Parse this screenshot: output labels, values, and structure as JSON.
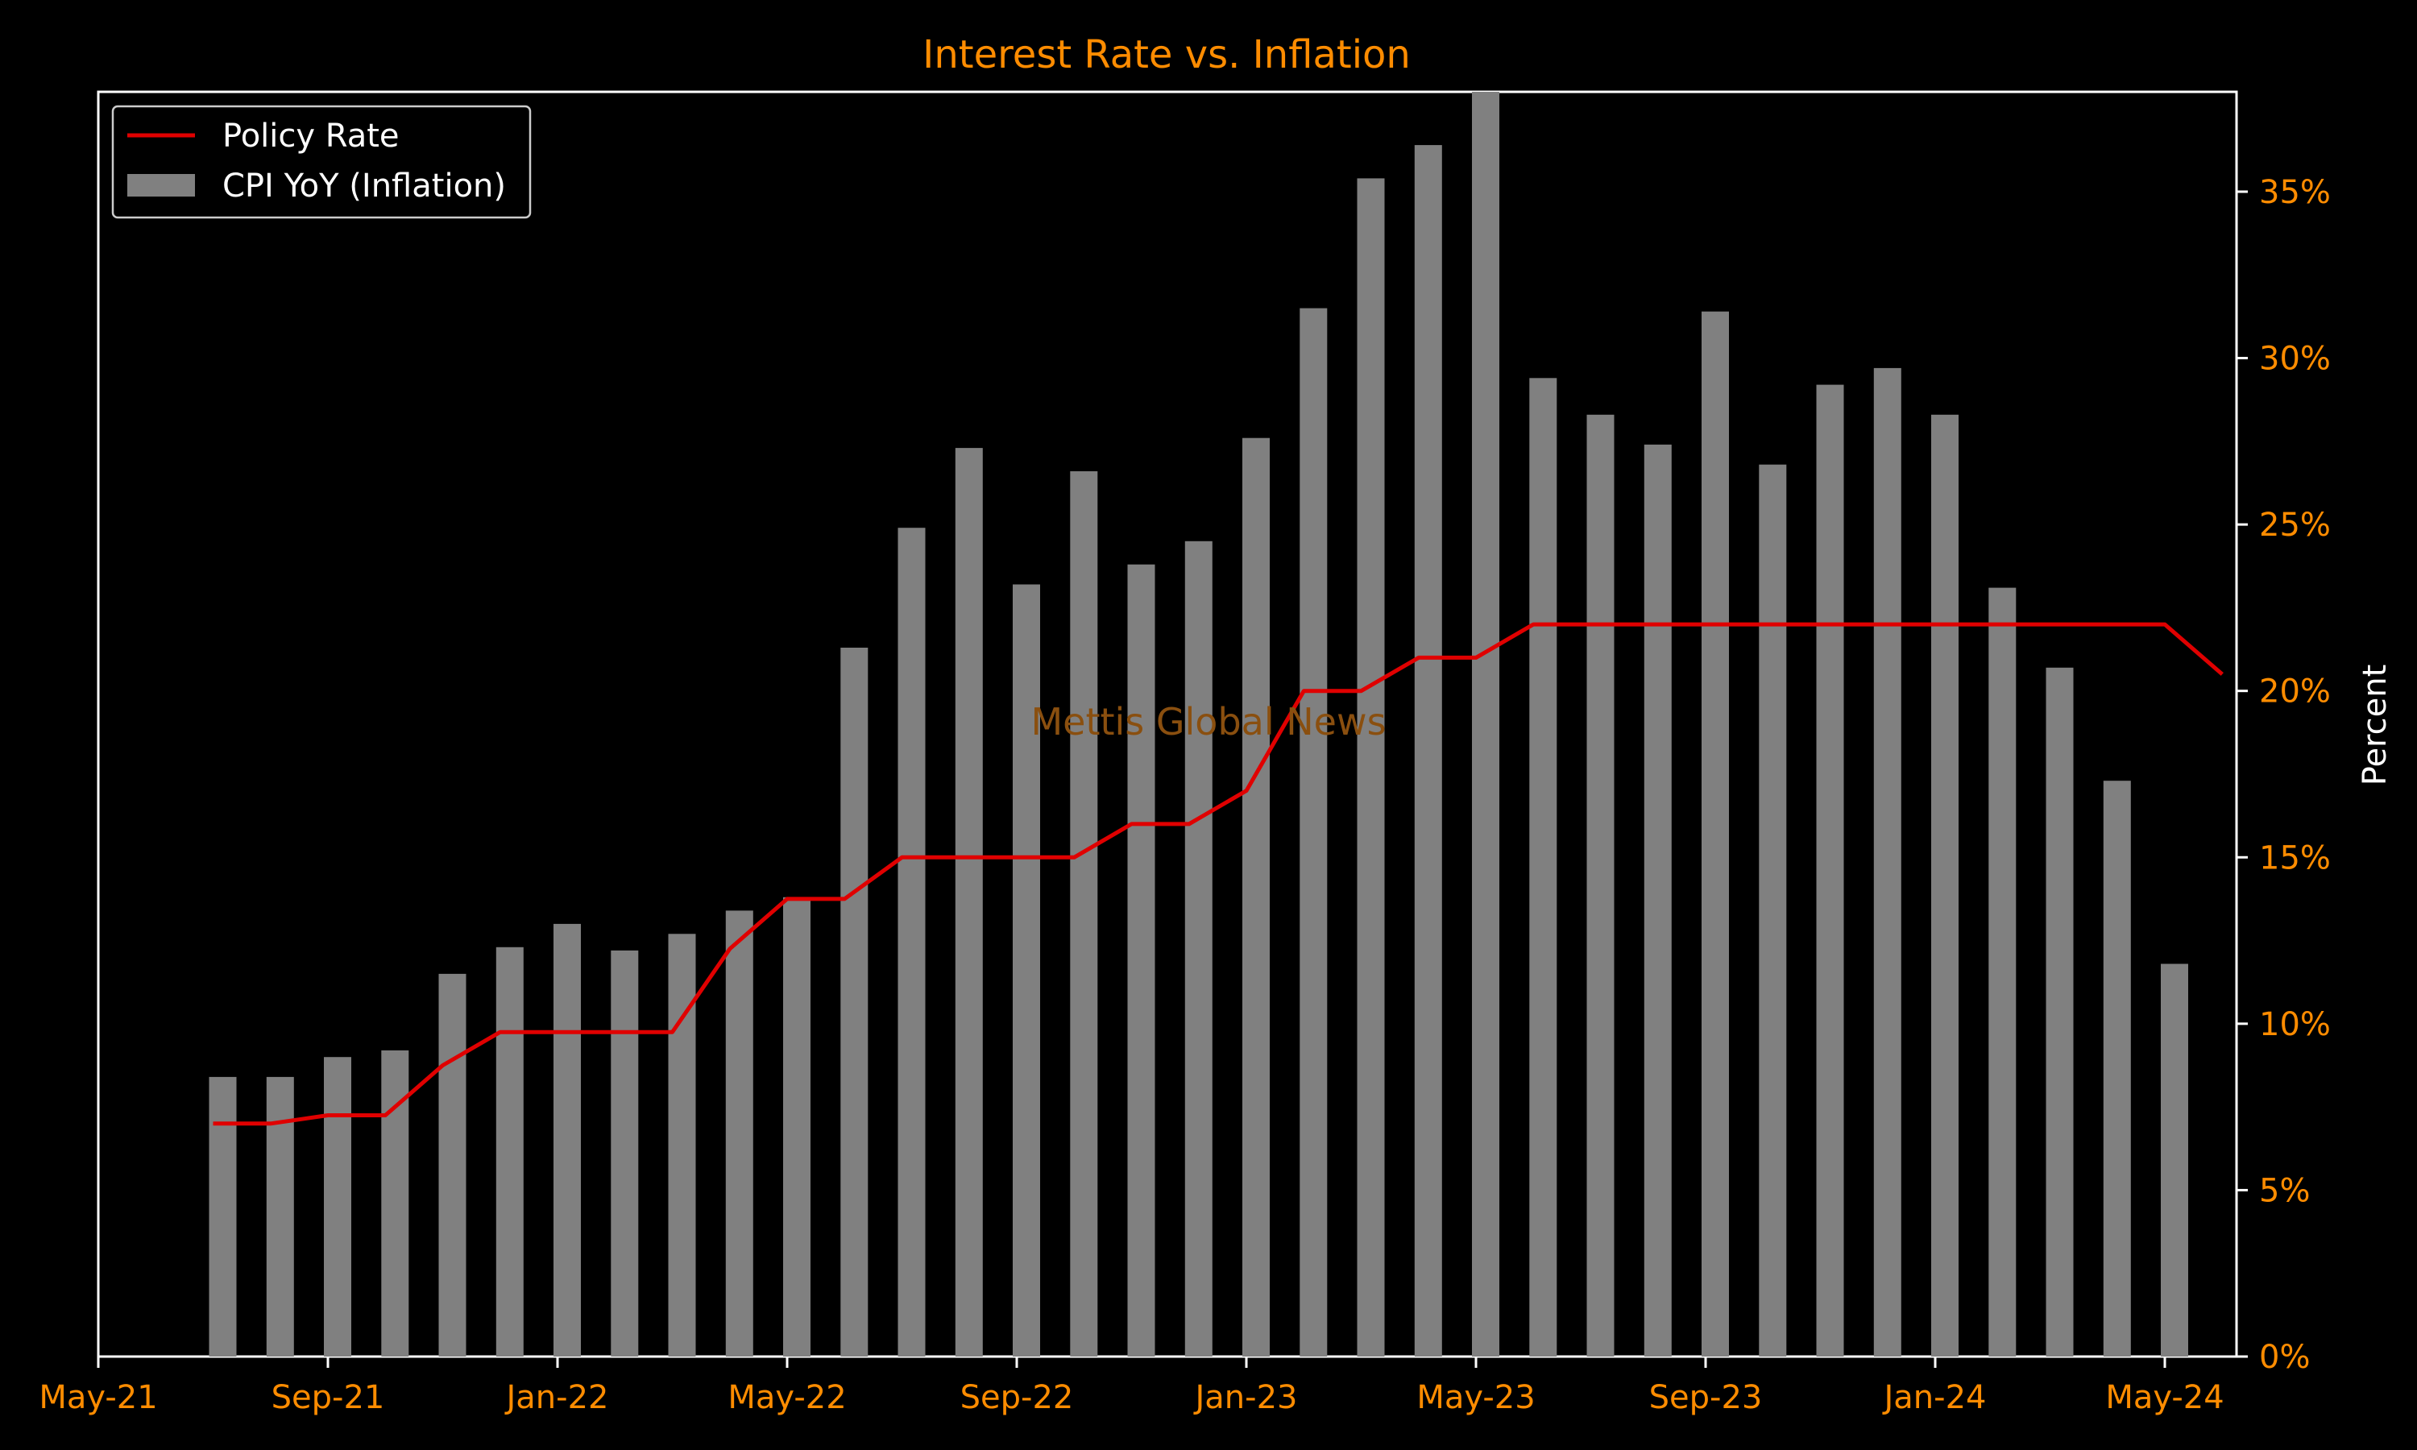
{
  "chart_data": {
    "type": "bar",
    "title": "Interest Rate vs. Inflation",
    "xlabel": "",
    "ylabel": "Percent",
    "watermark": "Mettis Global News",
    "x_tick_labels": [
      "May-21",
      "Sep-21",
      "Jan-22",
      "May-22",
      "Sep-22",
      "Jan-23",
      "May-23",
      "Sep-23",
      "Jan-24",
      "May-24"
    ],
    "y_tick_labels": [
      "0%",
      "5%",
      "10%",
      "15%",
      "20%",
      "25%",
      "30%",
      "35%"
    ],
    "ylim": [
      0,
      38
    ],
    "grid": false,
    "legend_position": "top-left",
    "categories": [
      "Jul-21",
      "Aug-21",
      "Sep-21",
      "Oct-21",
      "Nov-21",
      "Dec-21",
      "Jan-22",
      "Feb-22",
      "Mar-22",
      "Apr-22",
      "May-22",
      "Jun-22",
      "Jul-22",
      "Aug-22",
      "Sep-22",
      "Oct-22",
      "Nov-22",
      "Dec-22",
      "Jan-23",
      "Feb-23",
      "Mar-23",
      "Apr-23",
      "May-23",
      "Jun-23",
      "Jul-23",
      "Aug-23",
      "Sep-23",
      "Oct-23",
      "Nov-23",
      "Dec-23",
      "Jan-24",
      "Feb-24",
      "Mar-24",
      "Apr-24",
      "May-24",
      "Jun-24"
    ],
    "series": [
      {
        "name": "CPI YoY (Inflation)",
        "type": "bar",
        "values": [
          8.4,
          8.4,
          9.0,
          9.2,
          11.5,
          12.3,
          13.0,
          12.2,
          12.7,
          13.4,
          13.8,
          21.3,
          24.9,
          27.3,
          23.2,
          26.6,
          23.8,
          24.5,
          27.6,
          31.5,
          35.4,
          36.4,
          38.0,
          29.4,
          28.3,
          27.4,
          31.4,
          26.8,
          29.2,
          29.7,
          28.3,
          23.1,
          20.7,
          17.3,
          11.8,
          null
        ],
        "color": "#808080"
      },
      {
        "name": "Policy Rate",
        "type": "line",
        "values": [
          7.0,
          7.0,
          7.25,
          7.25,
          8.75,
          9.75,
          9.75,
          9.75,
          9.75,
          12.25,
          13.75,
          13.75,
          15.0,
          15.0,
          15.0,
          15.0,
          16.0,
          16.0,
          17.0,
          20.0,
          20.0,
          21.0,
          21.0,
          22.0,
          22.0,
          22.0,
          22.0,
          22.0,
          22.0,
          22.0,
          22.0,
          22.0,
          22.0,
          22.0,
          22.0,
          20.5
        ],
        "color": "#e00000"
      }
    ],
    "colors": {
      "title": "#ff8c00",
      "ticks": "#ff8c00",
      "axes": "#ffffff",
      "watermark": "#8a4f0f",
      "background": "#000000"
    }
  }
}
